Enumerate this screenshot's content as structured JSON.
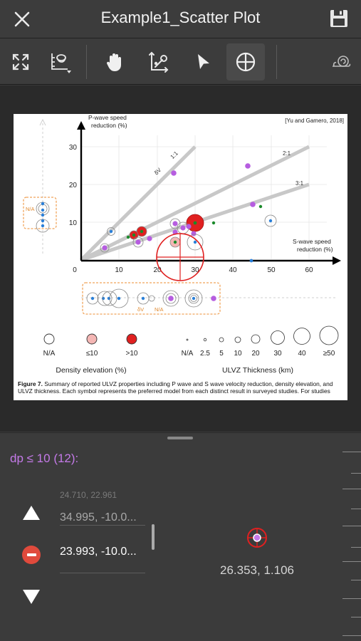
{
  "app": {
    "title": "Example1_Scatter Plot",
    "icons": {
      "close": "close-icon",
      "save": "save-icon"
    }
  },
  "toolbar": {
    "tools": [
      {
        "name": "fit-screen",
        "icon": "expand-arrows-icon"
      },
      {
        "name": "axis-settings",
        "icon": "axis-settings-icon"
      },
      {
        "name": "pan",
        "icon": "hand-icon"
      },
      {
        "name": "calibrate-axes",
        "icon": "axis-wrench-icon"
      },
      {
        "name": "select",
        "icon": "pointer-arrow-icon"
      },
      {
        "name": "add-point",
        "icon": "crosshair-icon",
        "active": true
      },
      {
        "name": "magnifier",
        "icon": "snail-magnifier-icon"
      }
    ]
  },
  "figure": {
    "citation": "[Yu and Gamero, 2018]",
    "y_axis_label_line1": "P-wave speed",
    "y_axis_label_line2": "reduction (%)",
    "x_axis_label_line1": "S-wave speed",
    "x_axis_label_line2": "reduction (%)",
    "x_ticks": [
      "0",
      "10",
      "20",
      "30",
      "40",
      "50",
      "60"
    ],
    "y_ticks": [
      "10",
      "20",
      "30"
    ],
    "ratio_labels": [
      "1:1",
      "2:1",
      "3:1"
    ],
    "ratio_label_prefix": "δV",
    "na_label_left": "N/A",
    "na_label_bottom": "N/A",
    "density_legend": {
      "labels": [
        "N/A",
        "≤10",
        ">10"
      ],
      "title": "Density elevation (%)",
      "colors": [
        "#ffffff",
        "#f4b6b4",
        "#e02020"
      ]
    },
    "thickness_legend": {
      "labels": [
        "N/A",
        "2.5",
        "5",
        "10",
        "20",
        "30",
        "40",
        "≥50"
      ],
      "title": "ULVZ Thickness (km)"
    },
    "caption_bold": "Figure 7.",
    "caption_text": " Summary of reported ULVZ properties including P wave and S wave velocity reduction, density elevation, and ULVZ thickness. Each symbol represents the preferred model from each distinct result in surveyed studies. For studies"
  },
  "digitizer": {
    "series_label": "dp ≤ 10 (12):",
    "series_color": "#c47ae8",
    "points": [
      "24.710, 22.961",
      "34.995, -10.0...",
      "23.993, -10.0..."
    ],
    "selected_index": 2,
    "cursor_coordinate": "26.353, 1.106"
  },
  "colors": {
    "accent_purple": "#b65de0",
    "marker_red": "#e02020",
    "point_blue": "#2a7fd8",
    "point_green": "#1a8a2a"
  }
}
